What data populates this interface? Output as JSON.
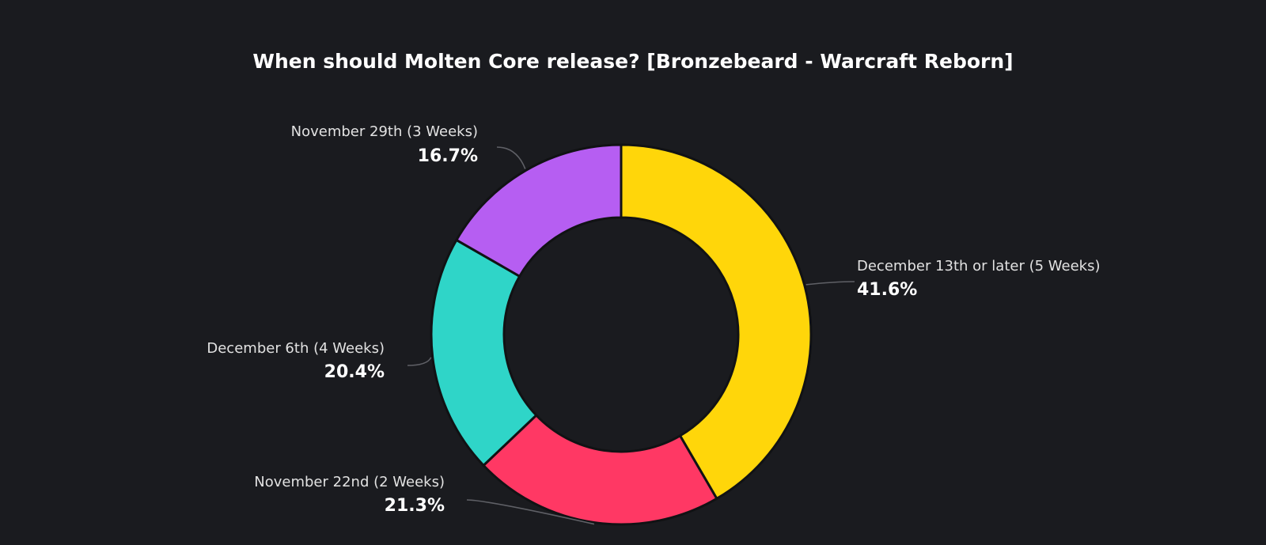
{
  "chart_data": {
    "type": "pie",
    "variant": "donut",
    "title": "When should Molten Core release? [Bronzebeard - Warcraft Reborn]",
    "slices": [
      {
        "label": "December 13th or later (5 Weeks)",
        "value": 41.6,
        "value_label": "41.6%",
        "color": "#ffd60a"
      },
      {
        "label": "November 22nd (2 Weeks)",
        "value": 21.3,
        "value_label": "21.3%",
        "color": "#ff3864"
      },
      {
        "label": "December 6th (4 Weeks)",
        "value": 20.4,
        "value_label": "20.4%",
        "color": "#2fd5c8"
      },
      {
        "label": "November 29th (3 Weeks)",
        "value": 16.7,
        "value_label": "16.7%",
        "color": "#b65ef2"
      }
    ],
    "legend": "none"
  },
  "colors": {
    "background": "#1a1b1f",
    "slice_border": "#111214",
    "leader_line": "#5f6066"
  }
}
